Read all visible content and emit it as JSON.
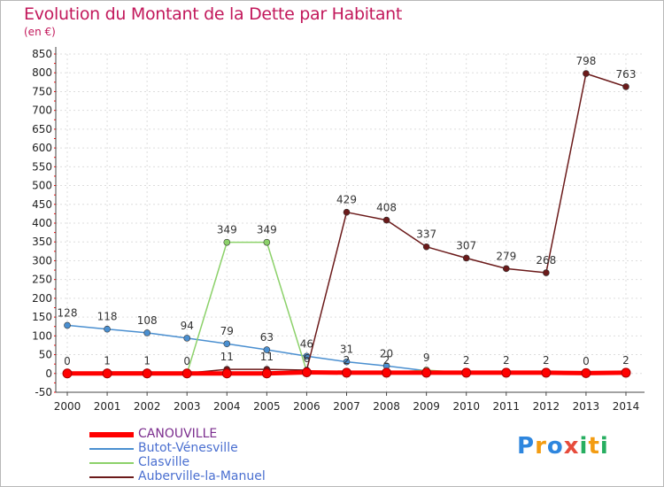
{
  "title": "Evolution du Montant de la Dette par Habitant",
  "unit": "(en €)",
  "logo": "Proxiti",
  "colors": {
    "title": "#c2185b",
    "axis": "#444444",
    "grid": "#dddddd",
    "canouville": "#ff0000",
    "butot": "#4a8fd0",
    "clasville": "#8cd16a",
    "auberville": "#6b1a1a"
  },
  "chart_data": {
    "type": "line",
    "title": "Evolution du Montant de la Dette par Habitant",
    "ylabel": "(en €)",
    "xlabel": "",
    "x": [
      "2000",
      "2001",
      "2002",
      "2003",
      "2004",
      "2005",
      "2006",
      "2007",
      "2008",
      "2009",
      "2010",
      "2011",
      "2012",
      "2013",
      "2014"
    ],
    "ylim": [
      -50,
      850
    ],
    "yticks": [
      -50,
      0,
      50,
      100,
      150,
      200,
      250,
      300,
      350,
      400,
      450,
      500,
      550,
      600,
      650,
      700,
      750,
      800,
      850
    ],
    "grid": true,
    "legend_position": "bottom-left",
    "series": [
      {
        "name": "CANOUVILLE",
        "color": "#ff0000",
        "values": [
          0,
          0,
          0,
          0,
          0,
          0,
          3,
          2,
          2,
          2,
          2,
          2,
          2,
          1,
          2
        ],
        "labels": [
          false,
          false,
          false,
          false,
          false,
          false,
          false,
          false,
          false,
          false,
          false,
          false,
          false,
          false,
          false
        ]
      },
      {
        "name": "Butot-Vénesville",
        "color": "#4a8fd0",
        "values": [
          128,
          118,
          108,
          94,
          79,
          63,
          46,
          31,
          20,
          7,
          null,
          null,
          null,
          null,
          null
        ],
        "labels": [
          true,
          true,
          true,
          true,
          true,
          true,
          true,
          true,
          true,
          false,
          false,
          false,
          false,
          false,
          false
        ]
      },
      {
        "name": "Clasville",
        "color": "#8cd16a",
        "values": [
          0,
          1,
          1,
          0,
          349,
          349,
          6,
          2,
          2,
          9,
          2,
          2,
          2,
          0,
          2
        ],
        "labels": [
          true,
          true,
          true,
          true,
          true,
          true,
          true,
          true,
          true,
          true,
          true,
          true,
          true,
          true,
          true
        ]
      },
      {
        "name": "Auberville-la-Manuel",
        "color": "#6b1a1a",
        "values": [
          1,
          4,
          4,
          1,
          11,
          11,
          9,
          429,
          408,
          337,
          307,
          279,
          268,
          798,
          763
        ],
        "labels": [
          false,
          false,
          false,
          false,
          true,
          true,
          false,
          true,
          true,
          true,
          true,
          true,
          true,
          true,
          true
        ]
      }
    ]
  }
}
